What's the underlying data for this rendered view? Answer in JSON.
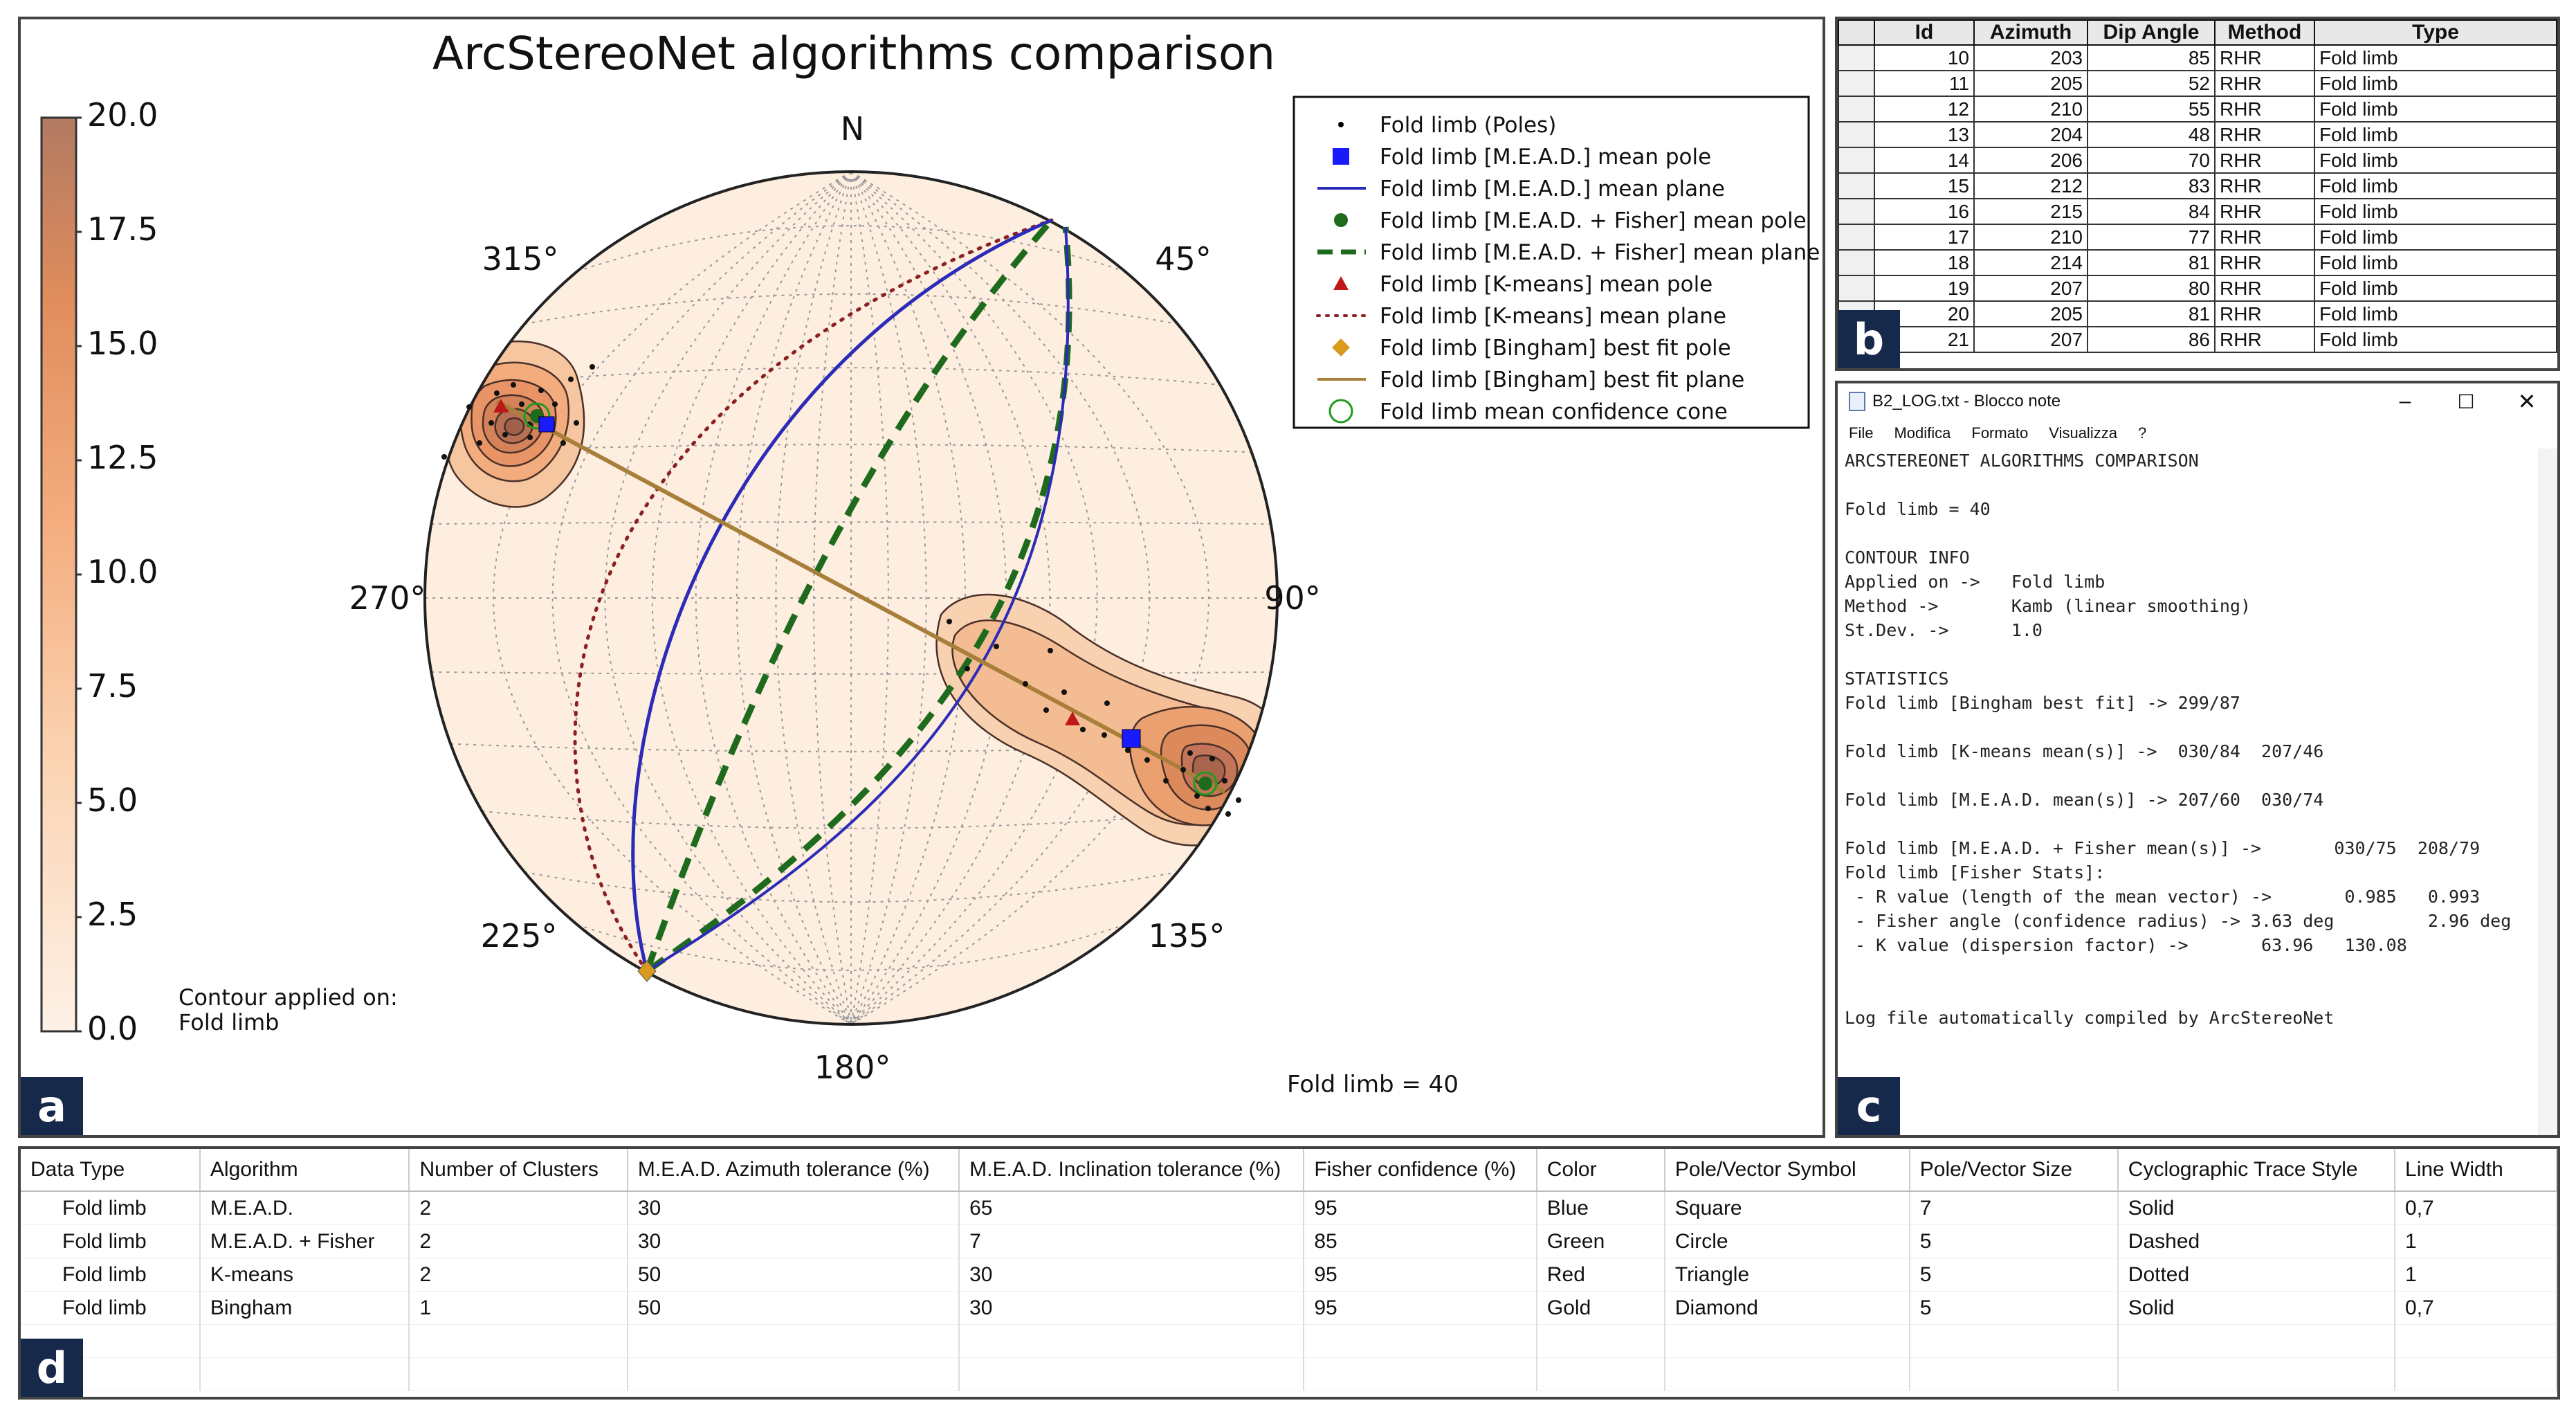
{
  "panel_a": {
    "tag": "a",
    "title": "ArcStereoNet algorithms comparison",
    "colorbar": {
      "ticks": [
        "20.0",
        "17.5",
        "15.0",
        "12.5",
        "10.0",
        "7.5",
        "5.0",
        "2.5",
        "0.0"
      ],
      "note_line1": "Contour applied on:",
      "note_line2": "Fold limb",
      "colors": {
        "top": "#b27a62",
        "upper": "#e08d5c",
        "mid": "#f4ae80",
        "lower": "#fbd3b2",
        "bottom": "#fdf1e6"
      }
    },
    "stereonet": {
      "labels": {
        "n": "N",
        "ne": "45°",
        "e": "90°",
        "se": "135°",
        "s": "180°",
        "sw": "225°",
        "w": "270°",
        "nw": "315°"
      },
      "footer": "Fold limb = 40"
    },
    "legend": [
      {
        "label": "Fold limb (Poles)",
        "symbol": "dot",
        "color": "#000000"
      },
      {
        "label": "Fold limb [M.E.A.D.] mean pole",
        "symbol": "square",
        "color": "#1a1aff"
      },
      {
        "label": "Fold limb [M.E.A.D.] mean plane",
        "symbol": "solid-line",
        "color": "#2b2bb8"
      },
      {
        "label": "Fold limb [M.E.A.D. + Fisher] mean pole",
        "symbol": "circle",
        "color": "#1e6b1e"
      },
      {
        "label": "Fold limb [M.E.A.D. + Fisher] mean plane",
        "symbol": "dashed-line",
        "color": "#1e6b1e"
      },
      {
        "label": "Fold limb [K-means] mean pole",
        "symbol": "triangle",
        "color": "#c01818"
      },
      {
        "label": "Fold limb [K-means] mean plane",
        "symbol": "dotted-line",
        "color": "#8b2020"
      },
      {
        "label": "Fold limb [Bingham] best fit pole",
        "symbol": "diamond",
        "color": "#d99a1e"
      },
      {
        "label": "Fold limb [Bingham] best fit plane",
        "symbol": "solid-line",
        "color": "#a87f3a"
      },
      {
        "label": "Fold limb mean confidence cone",
        "symbol": "ring",
        "color": "#1e9b1e"
      }
    ]
  },
  "panel_b": {
    "tag": "b",
    "headers": [
      "Id",
      "Azimuth",
      "Dip Angle",
      "Method",
      "Type"
    ],
    "rows": [
      [
        "10",
        "203",
        "85",
        "RHR",
        "Fold limb"
      ],
      [
        "11",
        "205",
        "52",
        "RHR",
        "Fold limb"
      ],
      [
        "12",
        "210",
        "55",
        "RHR",
        "Fold limb"
      ],
      [
        "13",
        "204",
        "48",
        "RHR",
        "Fold limb"
      ],
      [
        "14",
        "206",
        "70",
        "RHR",
        "Fold limb"
      ],
      [
        "15",
        "212",
        "83",
        "RHR",
        "Fold limb"
      ],
      [
        "16",
        "215",
        "84",
        "RHR",
        "Fold limb"
      ],
      [
        "17",
        "210",
        "77",
        "RHR",
        "Fold limb"
      ],
      [
        "18",
        "214",
        "81",
        "RHR",
        "Fold limb"
      ],
      [
        "19",
        "207",
        "80",
        "RHR",
        "Fold limb"
      ],
      [
        "20",
        "205",
        "81",
        "RHR",
        "Fold limb"
      ],
      [
        "21",
        "207",
        "86",
        "RHR",
        "Fold limb"
      ]
    ]
  },
  "panel_c": {
    "tag": "c",
    "window_title": "B2_LOG.txt - Blocco note",
    "menu": [
      "File",
      "Modifica",
      "Formato",
      "Visualizza",
      "?"
    ],
    "lines": [
      "ARCSTEREONET ALGORITHMS COMPARISON",
      "",
      "Fold limb = 40",
      "",
      "CONTOUR INFO",
      "Applied on ->   Fold limb",
      "Method ->       Kamb (linear smoothing)",
      "St.Dev. ->      1.0",
      "",
      "STATISTICS",
      "Fold limb [Bingham best fit] -> 299/87",
      "",
      "Fold limb [K-means mean(s)] ->  030/84  207/46",
      "",
      "Fold limb [M.E.A.D. mean(s)] -> 207/60  030/74",
      "",
      "Fold limb [M.E.A.D. + Fisher mean(s)] ->       030/75  208/79",
      "Fold limb [Fisher Stats]:",
      " - R value (length of the mean vector) ->       0.985   0.993",
      " - Fisher angle (confidence radius) -> 3.63 deg         2.96 deg",
      " - K value (dispersion factor) ->       63.96   130.08",
      "",
      "",
      "Log file automatically compiled by ArcStereoNet"
    ]
  },
  "panel_d": {
    "tag": "d",
    "headers": [
      "Data Type",
      "Algorithm",
      "Number of Clusters",
      "M.E.A.D. Azimuth tolerance (%)",
      "M.E.A.D. Inclination tolerance (%)",
      "Fisher confidence (%)",
      "Color",
      "Pole/Vector Symbol",
      "Pole/Vector Size",
      "Cyclographic Trace Style",
      "Line Width"
    ],
    "rows": [
      [
        "Fold limb",
        "M.E.A.D.",
        "2",
        "30",
        "65",
        "95",
        "Blue",
        "Square",
        "7",
        "Solid",
        "0,7"
      ],
      [
        "Fold limb",
        "M.E.A.D. + Fisher",
        "2",
        "30",
        "7",
        "85",
        "Green",
        "Circle",
        "5",
        "Dashed",
        "1"
      ],
      [
        "Fold limb",
        "K-means",
        "2",
        "50",
        "30",
        "95",
        "Red",
        "Triangle",
        "5",
        "Dotted",
        "1"
      ],
      [
        "Fold limb",
        "Bingham",
        "1",
        "50",
        "30",
        "95",
        "Gold",
        "Diamond",
        "5",
        "Solid",
        "0,7"
      ]
    ]
  }
}
